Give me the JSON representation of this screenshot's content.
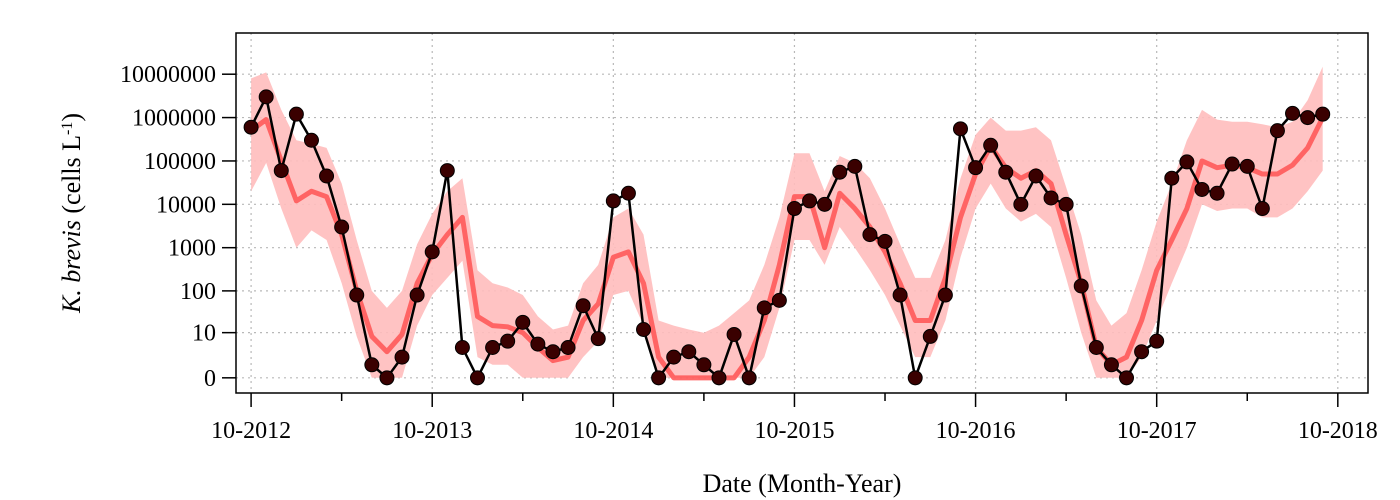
{
  "chart_data": {
    "type": "line",
    "title": "",
    "xlabel": "Date (Month-Year)",
    "ylabel": {
      "italic": "K. brevis",
      "units_prefix": " (cells L",
      "units_sup": "-1",
      "units_suffix": ")"
    },
    "x_ticks": [
      "10-2012",
      "10-2013",
      "10-2014",
      "10-2015",
      "10-2016",
      "10-2017",
      "10-2018"
    ],
    "y_ticks": [
      "0",
      "10",
      "100",
      "1000",
      "10000",
      "100000",
      "1000000",
      "10000000"
    ],
    "y_scale": "log",
    "xlim": [
      "2012-09",
      "2018-12"
    ],
    "ylim_decades": [
      -0.35,
      7.95
    ],
    "grid": true,
    "colors": {
      "observed": "#000000",
      "observed_marker": "#3a0000",
      "model_line": "#ff5a5a",
      "model_band": "#ffbcbc"
    },
    "series": [
      {
        "role": "observed",
        "points": [
          [
            "2012-10",
            600000
          ],
          [
            "2012-11",
            3000000
          ],
          [
            "2012-12",
            60000
          ],
          [
            "2013-01",
            1200000
          ],
          [
            "2013-02",
            300000
          ],
          [
            "2013-03",
            45000
          ],
          [
            "2013-04",
            3000
          ],
          [
            "2013-05",
            80
          ],
          [
            "2013-06",
            1
          ],
          [
            "2013-07",
            0
          ],
          [
            "2013-08",
            2
          ],
          [
            "2013-09",
            80
          ],
          [
            "2013-10",
            800
          ],
          [
            "2013-11",
            60000
          ],
          [
            "2013-12",
            4
          ],
          [
            "2014-01",
            0
          ],
          [
            "2014-02",
            4
          ],
          [
            "2014-03",
            6
          ],
          [
            "2014-04",
            18
          ],
          [
            "2014-05",
            5
          ],
          [
            "2014-06",
            3
          ],
          [
            "2014-07",
            4
          ],
          [
            "2014-08",
            45
          ],
          [
            "2014-09",
            7
          ],
          [
            "2014-10",
            12000
          ],
          [
            "2014-11",
            18000
          ],
          [
            "2014-12",
            12
          ],
          [
            "2015-01",
            0
          ],
          [
            "2015-02",
            2
          ],
          [
            "2015-03",
            3
          ],
          [
            "2015-04",
            1
          ],
          [
            "2015-05",
            0
          ],
          [
            "2015-06",
            9
          ],
          [
            "2015-07",
            0
          ],
          [
            "2015-08",
            40
          ],
          [
            "2015-09",
            60
          ],
          [
            "2015-10",
            8000
          ],
          [
            "2015-11",
            12000
          ],
          [
            "2015-12",
            10000
          ],
          [
            "2016-01",
            55000
          ],
          [
            "2016-02",
            75000
          ],
          [
            "2016-03",
            2000
          ],
          [
            "2016-04",
            1400
          ],
          [
            "2016-05",
            80
          ],
          [
            "2016-06",
            0
          ],
          [
            "2016-07",
            8
          ],
          [
            "2016-08",
            80
          ],
          [
            "2016-09",
            550000
          ],
          [
            "2016-10",
            70000
          ],
          [
            "2016-11",
            230000
          ],
          [
            "2016-12",
            55000
          ],
          [
            "2017-01",
            10000
          ],
          [
            "2017-02",
            45000
          ],
          [
            "2017-03",
            14000
          ],
          [
            "2017-04",
            10000
          ],
          [
            "2017-05",
            130
          ],
          [
            "2017-06",
            4
          ],
          [
            "2017-07",
            1
          ],
          [
            "2017-08",
            0
          ],
          [
            "2017-09",
            3
          ],
          [
            "2017-10",
            6
          ],
          [
            "2017-11",
            40000
          ],
          [
            "2017-12",
            95000
          ],
          [
            "2018-01",
            22000
          ],
          [
            "2018-02",
            18000
          ],
          [
            "2018-03",
            85000
          ],
          [
            "2018-04",
            75000
          ],
          [
            "2018-05",
            8000
          ],
          [
            "2018-06",
            500000
          ],
          [
            "2018-07",
            1250000
          ],
          [
            "2018-08",
            1000000
          ],
          [
            "2018-09",
            1200000
          ]
        ]
      },
      {
        "role": "model",
        "points": [
          [
            "2012-10",
            500000
          ],
          [
            "2012-11",
            900000
          ],
          [
            "2012-12",
            100000
          ],
          [
            "2013-01",
            12000
          ],
          [
            "2013-02",
            20000
          ],
          [
            "2013-03",
            15000
          ],
          [
            "2013-04",
            2000
          ],
          [
            "2013-05",
            100
          ],
          [
            "2013-06",
            8
          ],
          [
            "2013-07",
            3
          ],
          [
            "2013-08",
            9
          ],
          [
            "2013-09",
            150
          ],
          [
            "2013-10",
            700
          ],
          [
            "2013-11",
            2000
          ],
          [
            "2013-12",
            5000
          ],
          [
            "2014-01",
            25
          ],
          [
            "2014-02",
            15
          ],
          [
            "2014-03",
            14
          ],
          [
            "2014-04",
            10
          ],
          [
            "2014-05",
            4
          ],
          [
            "2014-06",
            1.5
          ],
          [
            "2014-07",
            2
          ],
          [
            "2014-08",
            20
          ],
          [
            "2014-09",
            50
          ],
          [
            "2014-10",
            600
          ],
          [
            "2014-11",
            800
          ],
          [
            "2014-12",
            150
          ],
          [
            "2015-01",
            2
          ],
          [
            "2015-02",
            0
          ],
          [
            "2015-03",
            0
          ],
          [
            "2015-04",
            0
          ],
          [
            "2015-05",
            0
          ],
          [
            "2015-06",
            0
          ],
          [
            "2015-07",
            2
          ],
          [
            "2015-08",
            20
          ],
          [
            "2015-09",
            400
          ],
          [
            "2015-10",
            15000
          ],
          [
            "2015-11",
            15000
          ],
          [
            "2015-12",
            1000
          ],
          [
            "2016-01",
            18000
          ],
          [
            "2016-02",
            8000
          ],
          [
            "2016-03",
            3000
          ],
          [
            "2016-04",
            800
          ],
          [
            "2016-05",
            150
          ],
          [
            "2016-06",
            20
          ],
          [
            "2016-07",
            20
          ],
          [
            "2016-08",
            200
          ],
          [
            "2016-09",
            5000
          ],
          [
            "2016-10",
            50000
          ],
          [
            "2016-11",
            220000
          ],
          [
            "2016-12",
            70000
          ],
          [
            "2017-01",
            40000
          ],
          [
            "2017-02",
            60000
          ],
          [
            "2017-03",
            30000
          ],
          [
            "2017-04",
            2000
          ],
          [
            "2017-05",
            150
          ],
          [
            "2017-06",
            4
          ],
          [
            "2017-07",
            1
          ],
          [
            "2017-08",
            2
          ],
          [
            "2017-09",
            20
          ],
          [
            "2017-10",
            300
          ],
          [
            "2017-11",
            1500
          ],
          [
            "2017-12",
            8000
          ],
          [
            "2018-01",
            100000
          ],
          [
            "2018-02",
            70000
          ],
          [
            "2018-03",
            80000
          ],
          [
            "2018-04",
            70000
          ],
          [
            "2018-05",
            50000
          ],
          [
            "2018-06",
            50000
          ],
          [
            "2018-07",
            80000
          ],
          [
            "2018-08",
            200000
          ],
          [
            "2018-09",
            1000000
          ]
        ]
      },
      {
        "role": "model_band_upper",
        "points": [
          [
            "2012-10",
            8000000
          ],
          [
            "2012-11",
            11000000
          ],
          [
            "2012-12",
            1500000
          ],
          [
            "2013-01",
            300000
          ],
          [
            "2013-02",
            250000
          ],
          [
            "2013-03",
            200000
          ],
          [
            "2013-04",
            30000
          ],
          [
            "2013-05",
            1500
          ],
          [
            "2013-06",
            100
          ],
          [
            "2013-07",
            40
          ],
          [
            "2013-08",
            100
          ],
          [
            "2013-09",
            1200
          ],
          [
            "2013-10",
            6000
          ],
          [
            "2013-11",
            20000
          ],
          [
            "2013-12",
            40000
          ],
          [
            "2014-01",
            300
          ],
          [
            "2014-02",
            150
          ],
          [
            "2014-03",
            120
          ],
          [
            "2014-04",
            80
          ],
          [
            "2014-05",
            25
          ],
          [
            "2014-06",
            12
          ],
          [
            "2014-07",
            15
          ],
          [
            "2014-08",
            150
          ],
          [
            "2014-09",
            400
          ],
          [
            "2014-10",
            5000
          ],
          [
            "2014-11",
            8000
          ],
          [
            "2014-12",
            2000
          ],
          [
            "2015-01",
            20
          ],
          [
            "2015-02",
            15
          ],
          [
            "2015-03",
            12
          ],
          [
            "2015-04",
            10
          ],
          [
            "2015-05",
            15
          ],
          [
            "2015-06",
            30
          ],
          [
            "2015-07",
            60
          ],
          [
            "2015-08",
            400
          ],
          [
            "2015-09",
            5000
          ],
          [
            "2015-10",
            150000
          ],
          [
            "2015-11",
            150000
          ],
          [
            "2015-12",
            20000
          ],
          [
            "2016-01",
            130000
          ],
          [
            "2016-02",
            90000
          ],
          [
            "2016-03",
            40000
          ],
          [
            "2016-04",
            8000
          ],
          [
            "2016-05",
            1200
          ],
          [
            "2016-06",
            200
          ],
          [
            "2016-07",
            200
          ],
          [
            "2016-08",
            1500
          ],
          [
            "2016-09",
            40000
          ],
          [
            "2016-10",
            400000
          ],
          [
            "2016-11",
            1000000
          ],
          [
            "2016-12",
            500000
          ],
          [
            "2017-01",
            500000
          ],
          [
            "2017-02",
            600000
          ],
          [
            "2017-03",
            300000
          ],
          [
            "2017-04",
            25000
          ],
          [
            "2017-05",
            2000
          ],
          [
            "2017-06",
            60
          ],
          [
            "2017-07",
            15
          ],
          [
            "2017-08",
            30
          ],
          [
            "2017-09",
            300
          ],
          [
            "2017-10",
            4000
          ],
          [
            "2017-11",
            30000
          ],
          [
            "2017-12",
            300000
          ],
          [
            "2018-01",
            1500000
          ],
          [
            "2018-02",
            900000
          ],
          [
            "2018-03",
            800000
          ],
          [
            "2018-04",
            800000
          ],
          [
            "2018-05",
            700000
          ],
          [
            "2018-06",
            600000
          ],
          [
            "2018-07",
            800000
          ],
          [
            "2018-08",
            2500000
          ],
          [
            "2018-09",
            15000000
          ]
        ]
      },
      {
        "role": "model_band_lower",
        "points": [
          [
            "2012-10",
            20000
          ],
          [
            "2012-11",
            90000
          ],
          [
            "2012-12",
            8000
          ],
          [
            "2013-01",
            1000
          ],
          [
            "2013-02",
            2500
          ],
          [
            "2013-03",
            1500
          ],
          [
            "2013-04",
            150
          ],
          [
            "2013-05",
            8
          ],
          [
            "2013-06",
            0
          ],
          [
            "2013-07",
            0
          ],
          [
            "2013-08",
            0
          ],
          [
            "2013-09",
            15
          ],
          [
            "2013-10",
            80
          ],
          [
            "2013-11",
            200
          ],
          [
            "2013-12",
            500
          ],
          [
            "2014-01",
            2
          ],
          [
            "2014-02",
            1
          ],
          [
            "2014-03",
            1
          ],
          [
            "2014-04",
            0
          ],
          [
            "2014-05",
            0
          ],
          [
            "2014-06",
            0
          ],
          [
            "2014-07",
            0
          ],
          [
            "2014-08",
            2
          ],
          [
            "2014-09",
            6
          ],
          [
            "2014-10",
            80
          ],
          [
            "2014-11",
            100
          ],
          [
            "2014-12",
            15
          ],
          [
            "2015-01",
            0
          ],
          [
            "2015-02",
            0
          ],
          [
            "2015-03",
            0
          ],
          [
            "2015-04",
            0
          ],
          [
            "2015-05",
            0
          ],
          [
            "2015-06",
            0
          ],
          [
            "2015-07",
            0
          ],
          [
            "2015-08",
            2
          ],
          [
            "2015-09",
            40
          ],
          [
            "2015-10",
            1500
          ],
          [
            "2015-11",
            1500
          ],
          [
            "2015-12",
            400
          ],
          [
            "2016-01",
            3000
          ],
          [
            "2016-02",
            1000
          ],
          [
            "2016-03",
            300
          ],
          [
            "2016-04",
            80
          ],
          [
            "2016-05",
            15
          ],
          [
            "2016-06",
            2
          ],
          [
            "2016-07",
            2
          ],
          [
            "2016-08",
            20
          ],
          [
            "2016-09",
            600
          ],
          [
            "2016-10",
            8000
          ],
          [
            "2016-11",
            30000
          ],
          [
            "2016-12",
            8000
          ],
          [
            "2017-01",
            4000
          ],
          [
            "2017-02",
            6000
          ],
          [
            "2017-03",
            3000
          ],
          [
            "2017-04",
            200
          ],
          [
            "2017-05",
            10
          ],
          [
            "2017-06",
            0
          ],
          [
            "2017-07",
            0
          ],
          [
            "2017-08",
            0
          ],
          [
            "2017-09",
            2
          ],
          [
            "2017-10",
            20
          ],
          [
            "2017-11",
            150
          ],
          [
            "2017-12",
            1000
          ],
          [
            "2018-01",
            10000
          ],
          [
            "2018-02",
            7000
          ],
          [
            "2018-03",
            8000
          ],
          [
            "2018-04",
            8000
          ],
          [
            "2018-05",
            5000
          ],
          [
            "2018-06",
            5000
          ],
          [
            "2018-07",
            8000
          ],
          [
            "2018-08",
            20000
          ],
          [
            "2018-09",
            60000
          ]
        ]
      }
    ]
  }
}
